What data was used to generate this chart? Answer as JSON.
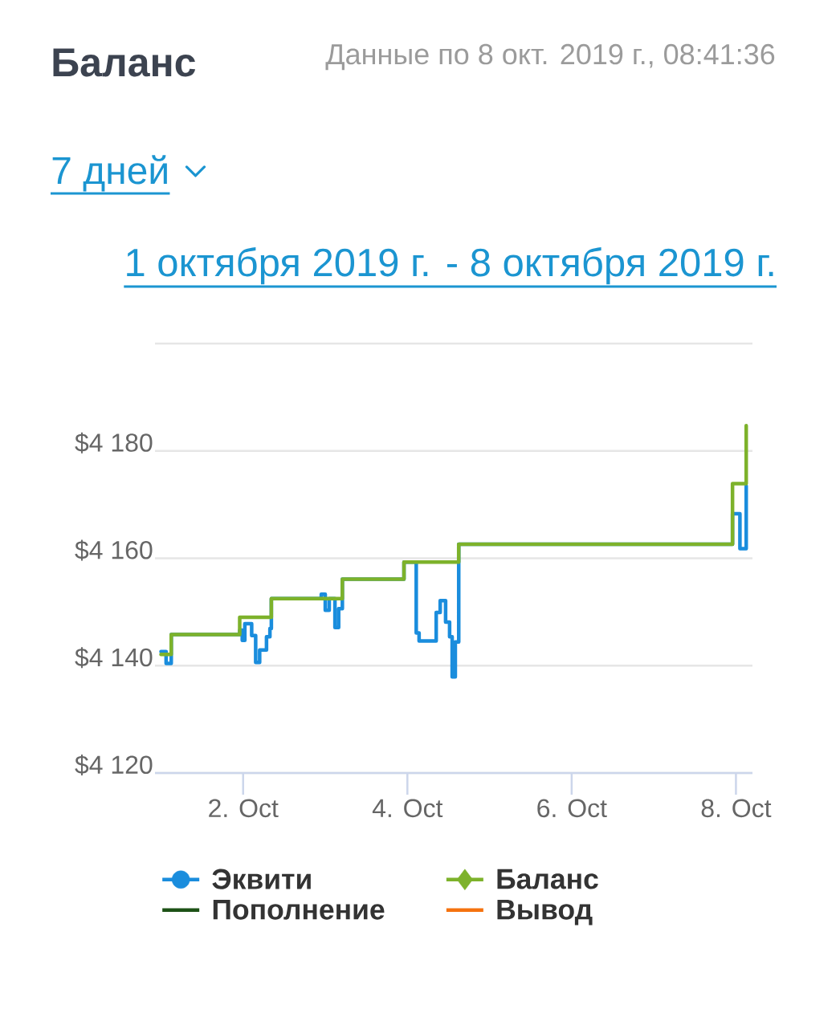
{
  "chart_data": {
    "type": "step",
    "title": "Баланс",
    "subtitle": "Данные по 8 окт. 2019 г., 08:41:36",
    "annotations": [
      "7 дней",
      "1 октября 2019 г. - 8 октября 2019 г."
    ],
    "xlim": [
      "2019-09-30T22:15",
      "2019-10-08T04:50"
    ],
    "xticks": [
      {
        "value": "2019-10-02",
        "label": "2. Oct"
      },
      {
        "value": "2019-10-04",
        "label": "4. Oct"
      },
      {
        "value": "2019-10-06",
        "label": "6. Oct"
      },
      {
        "value": "2019-10-08",
        "label": "8. Oct"
      }
    ],
    "ylim": [
      4120,
      4200
    ],
    "yticks": [
      {
        "value": 4120,
        "label": "$4 120"
      },
      {
        "value": 4140,
        "label": "$4 140"
      },
      {
        "value": 4160,
        "label": "$4 160"
      },
      {
        "value": 4180,
        "label": "$4 180"
      },
      {
        "value": 4200,
        "label": null
      }
    ],
    "grid": "y",
    "legend": "bottom",
    "series": [
      {
        "name": "Эквити",
        "color": "#1a8ddd",
        "x": [
          "2019-10-01T00:00",
          "2019-10-01T01:30",
          "2019-10-01T03:00",
          "2019-10-01T23:00",
          "2019-10-01T23:45",
          "2019-10-02T00:30",
          "2019-10-02T02:30",
          "2019-10-02T03:40",
          "2019-10-02T04:50",
          "2019-10-02T06:50",
          "2019-10-02T07:50",
          "2019-10-02T08:15",
          "2019-10-02T22:50",
          "2019-10-03T00:00",
          "2019-10-03T01:10",
          "2019-10-03T02:50",
          "2019-10-03T03:55",
          "2019-10-03T05:00",
          "2019-10-03T23:00",
          "2019-10-04T02:35",
          "2019-10-04T03:25",
          "2019-10-04T08:25",
          "2019-10-04T09:35",
          "2019-10-04T11:10",
          "2019-10-04T12:20",
          "2019-10-04T13:05",
          "2019-10-04T14:00",
          "2019-10-04T15:00",
          "2019-10-07T23:00",
          "2019-10-08T01:10",
          "2019-10-08T03:00"
        ],
        "values": [
          4142.6,
          4140.4,
          4145.8,
          4146.6,
          4144.7,
          4147.8,
          4145.6,
          4140.6,
          4142.9,
          4145.4,
          4146.9,
          4152.5,
          4153.3,
          4150.3,
          4152.5,
          4147.1,
          4150.6,
          4156.1,
          4159.3,
          4146.1,
          4144.6,
          4149.9,
          4152.1,
          4148.1,
          4145.4,
          4137.9,
          4144.4,
          4162.6,
          4168.3,
          4161.8,
          4173.5
        ]
      },
      {
        "name": "Баланс",
        "color": "#7db22b",
        "x": [
          "2019-10-01T00:00",
          "2019-10-01T03:00",
          "2019-10-01T23:00",
          "2019-10-02T08:15",
          "2019-10-03T05:00",
          "2019-10-03T23:00",
          "2019-10-04T15:00",
          "2019-10-07T23:00",
          "2019-10-08T03:00"
        ],
        "values": [
          4142.1,
          4145.8,
          4149.0,
          4152.5,
          4156.1,
          4159.3,
          4162.6,
          4173.9,
          4184.7
        ]
      },
      {
        "name": "Пополнение",
        "color": "#1d5216"
      },
      {
        "name": "Вывод",
        "color": "#f5720f"
      }
    ]
  }
}
